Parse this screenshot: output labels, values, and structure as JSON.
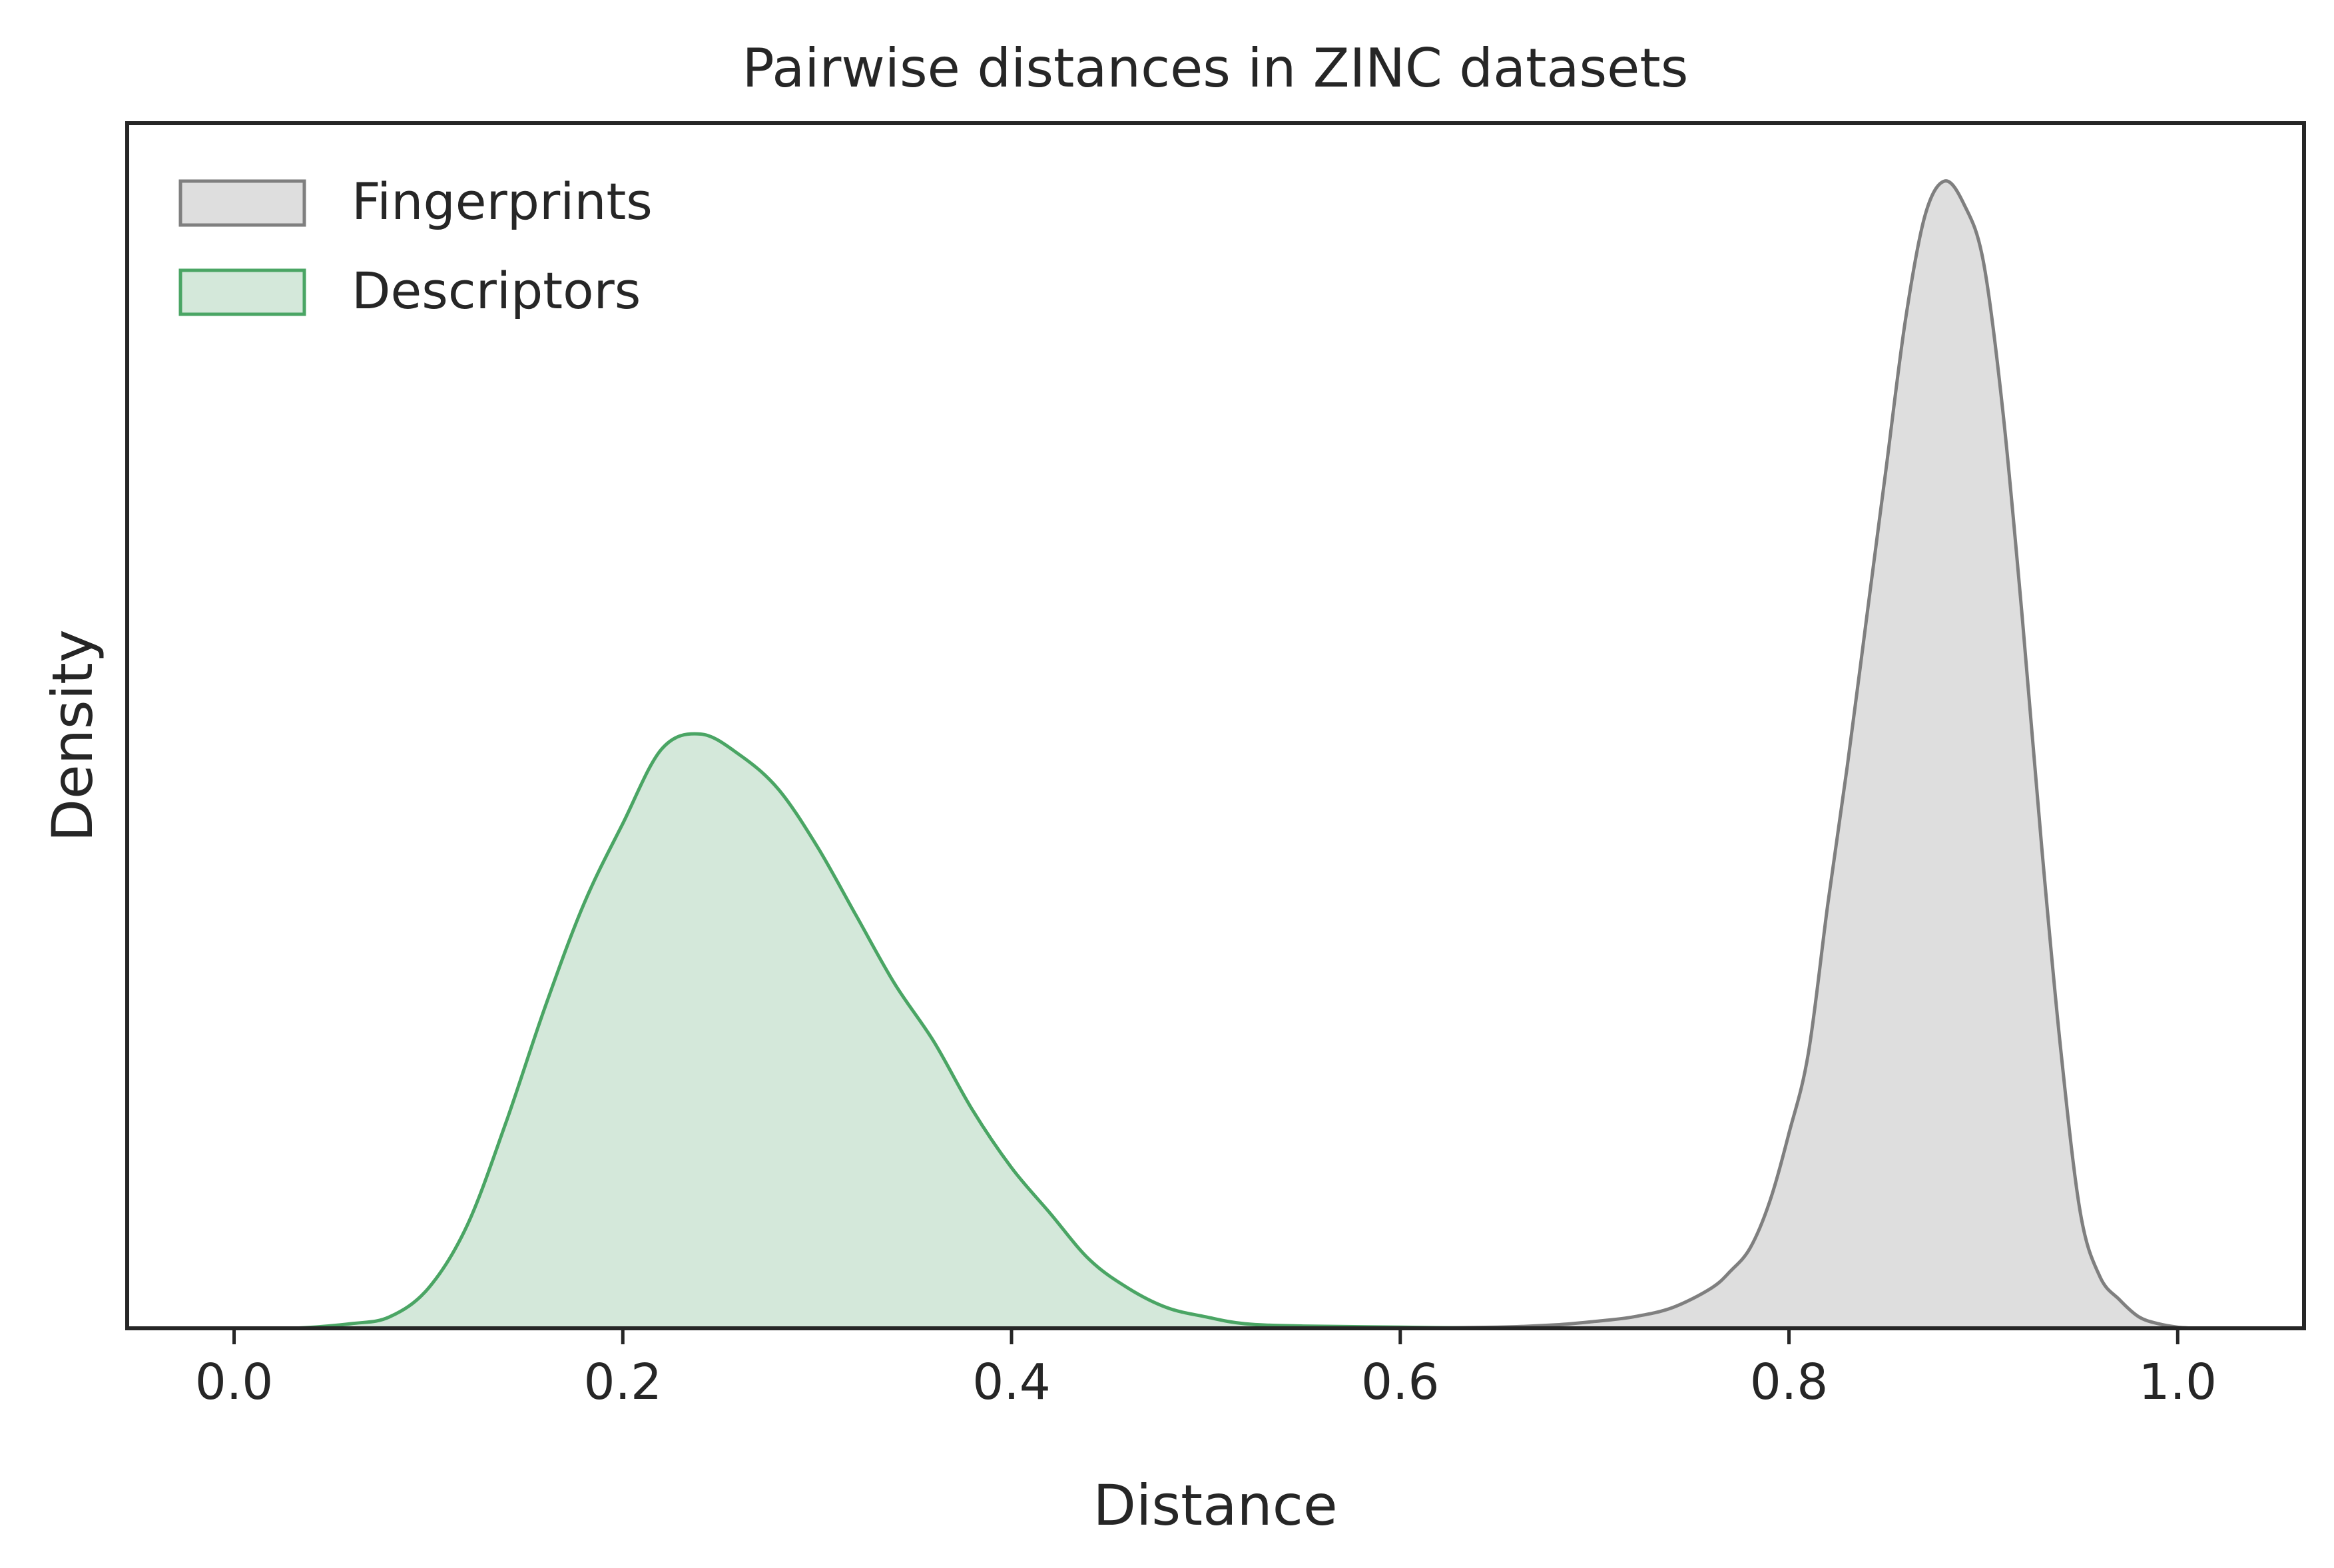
{
  "chart_data": {
    "type": "area",
    "title": "Pairwise distances in ZINC datasets",
    "xlabel": "Distance",
    "ylabel": "Density",
    "xlim": [
      -0.055,
      1.065
    ],
    "ylim": [
      0,
      1.0
    ],
    "x_ticks": [
      "0.0",
      "0.2",
      "0.4",
      "0.6",
      "0.8",
      "1.0"
    ],
    "y_ticks_shown": false,
    "grid": false,
    "legend_position": "top-left",
    "series": [
      {
        "name": "Fingerprints",
        "color": "#7f7f7f",
        "fill": "#dedede",
        "points": [
          [
            0.55,
            0.0
          ],
          [
            0.6,
            0.0
          ],
          [
            0.65,
            0.001
          ],
          [
            0.68,
            0.003
          ],
          [
            0.7,
            0.006
          ],
          [
            0.72,
            0.01
          ],
          [
            0.74,
            0.018
          ],
          [
            0.76,
            0.035
          ],
          [
            0.77,
            0.05
          ],
          [
            0.78,
            0.07
          ],
          [
            0.79,
            0.11
          ],
          [
            0.8,
            0.17
          ],
          [
            0.81,
            0.24
          ],
          [
            0.82,
            0.37
          ],
          [
            0.83,
            0.49
          ],
          [
            0.84,
            0.62
          ],
          [
            0.85,
            0.75
          ],
          [
            0.86,
            0.88
          ],
          [
            0.87,
            0.97
          ],
          [
            0.88,
            1.0
          ],
          [
            0.89,
            0.98
          ],
          [
            0.9,
            0.93
          ],
          [
            0.91,
            0.8
          ],
          [
            0.92,
            0.62
          ],
          [
            0.93,
            0.42
          ],
          [
            0.94,
            0.24
          ],
          [
            0.95,
            0.1
          ],
          [
            0.96,
            0.045
          ],
          [
            0.97,
            0.025
          ],
          [
            0.98,
            0.01
          ],
          [
            0.99,
            0.004
          ],
          [
            1.0,
            0.001
          ],
          [
            1.01,
            0.0
          ]
        ]
      },
      {
        "name": "Descriptors",
        "color": "#4aa564",
        "fill": "#d4e8da",
        "points": [
          [
            0.0,
            0.0
          ],
          [
            0.03,
            0.0
          ],
          [
            0.06,
            0.004
          ],
          [
            0.08,
            0.01
          ],
          [
            0.1,
            0.035
          ],
          [
            0.12,
            0.09
          ],
          [
            0.14,
            0.18
          ],
          [
            0.16,
            0.28
          ],
          [
            0.18,
            0.37
          ],
          [
            0.2,
            0.44
          ],
          [
            0.22,
            0.505
          ],
          [
            0.24,
            0.518
          ],
          [
            0.26,
            0.5
          ],
          [
            0.28,
            0.47
          ],
          [
            0.3,
            0.42
          ],
          [
            0.32,
            0.36
          ],
          [
            0.34,
            0.3
          ],
          [
            0.36,
            0.25
          ],
          [
            0.38,
            0.19
          ],
          [
            0.4,
            0.14
          ],
          [
            0.42,
            0.1
          ],
          [
            0.44,
            0.06
          ],
          [
            0.46,
            0.035
          ],
          [
            0.48,
            0.018
          ],
          [
            0.5,
            0.01
          ],
          [
            0.52,
            0.004
          ],
          [
            0.55,
            0.002
          ],
          [
            0.6,
            0.001
          ],
          [
            0.65,
            0.0
          ]
        ]
      }
    ]
  }
}
